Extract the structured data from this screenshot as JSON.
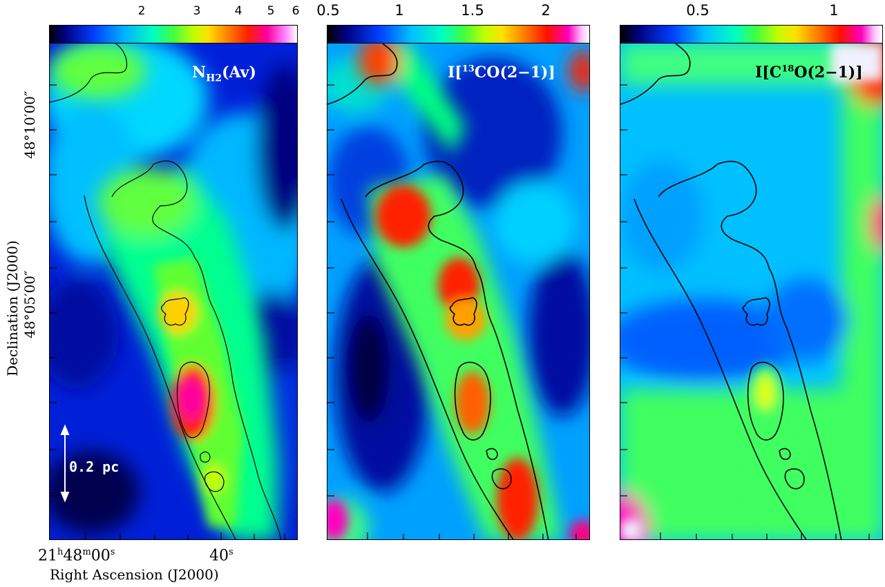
{
  "panels": [
    {
      "title_main": "N",
      "title_sub": "H2",
      "title_rest": "(Av)",
      "colorbar_ticks": [
        "2",
        "3",
        "4",
        "5",
        "6"
      ]
    },
    {
      "title_pre": "I[",
      "title_sup": "13",
      "title_rest": "CO(2−1)]",
      "colorbar_ticks": [
        "0.5",
        "1",
        "1.5",
        "2"
      ]
    },
    {
      "title_pre": "I[C",
      "title_sup": "18",
      "title_rest": "O(2−1)]",
      "colorbar_ticks": [
        "0.5",
        "1"
      ]
    }
  ],
  "axes": {
    "dec_label": "Declination (J2000)",
    "dec_ticks": [
      "48°10′00″",
      "48°05′00″"
    ],
    "ra_label": "Right Ascension (J2000)",
    "ra_tick_1_h": "21",
    "ra_tick_1_m": "48",
    "ra_tick_1_s": "00",
    "ra_tick_2_s": "40"
  },
  "scale_bar": {
    "label": "0.2 pc"
  },
  "colors": {
    "colormap": [
      "#000000",
      "#00008c",
      "#0040ff",
      "#00c8ff",
      "#00ff80",
      "#80ff00",
      "#ffff00",
      "#ff8000",
      "#ff0000",
      "#ff00ff",
      "#ffffff"
    ]
  }
}
